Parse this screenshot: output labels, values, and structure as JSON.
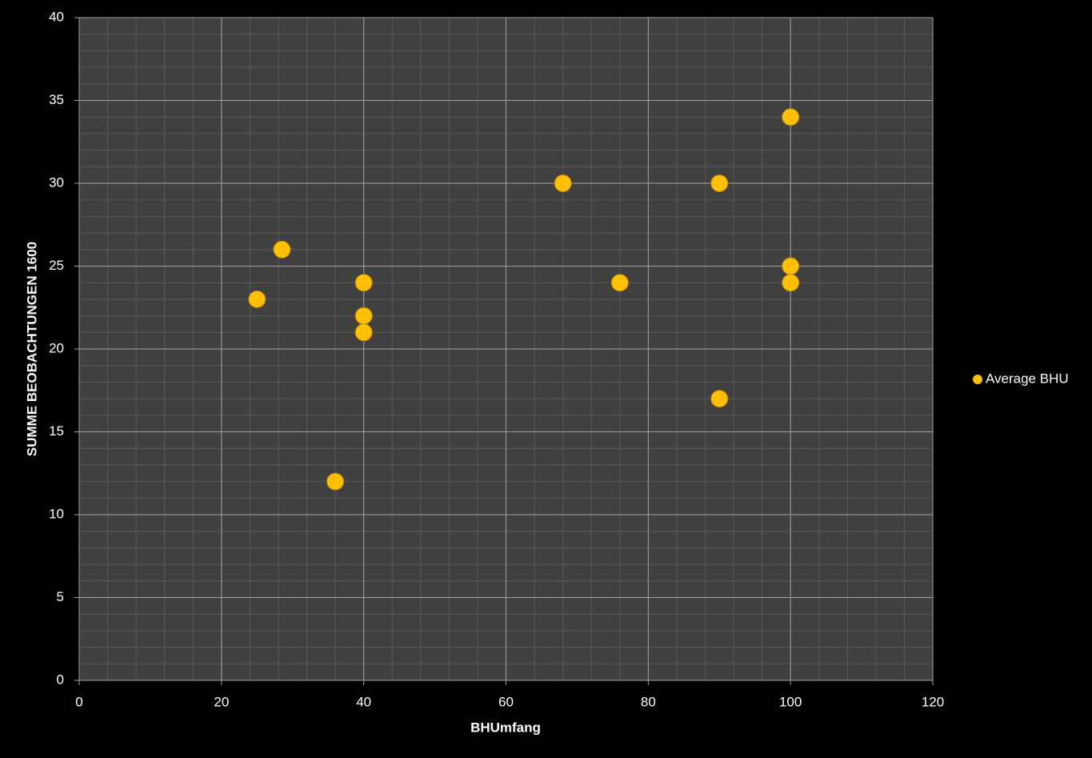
{
  "chart_data": {
    "type": "scatter",
    "x_label": "BHUmfang",
    "y_label": "SUMME BEOBACHTUNGEN 1600",
    "series": [
      {
        "name": "Average BHU",
        "color": "#ffc000",
        "x": [
          25,
          28.5,
          36,
          40,
          40,
          40,
          68,
          76,
          90,
          90,
          100,
          100,
          100
        ],
        "values": [
          23,
          26,
          12,
          24,
          22,
          21,
          30,
          24,
          30,
          17,
          34,
          25,
          24
        ]
      }
    ],
    "xlim": [
      0,
      120
    ],
    "xticks": [
      0,
      20,
      40,
      60,
      80,
      100,
      120
    ],
    "ylim": [
      0,
      40
    ],
    "yticks": [
      0,
      5,
      10,
      15,
      20,
      25,
      30,
      35,
      40
    ],
    "grid": true,
    "minor_grid": {
      "x": 4,
      "y": 1
    },
    "legend": "right"
  }
}
